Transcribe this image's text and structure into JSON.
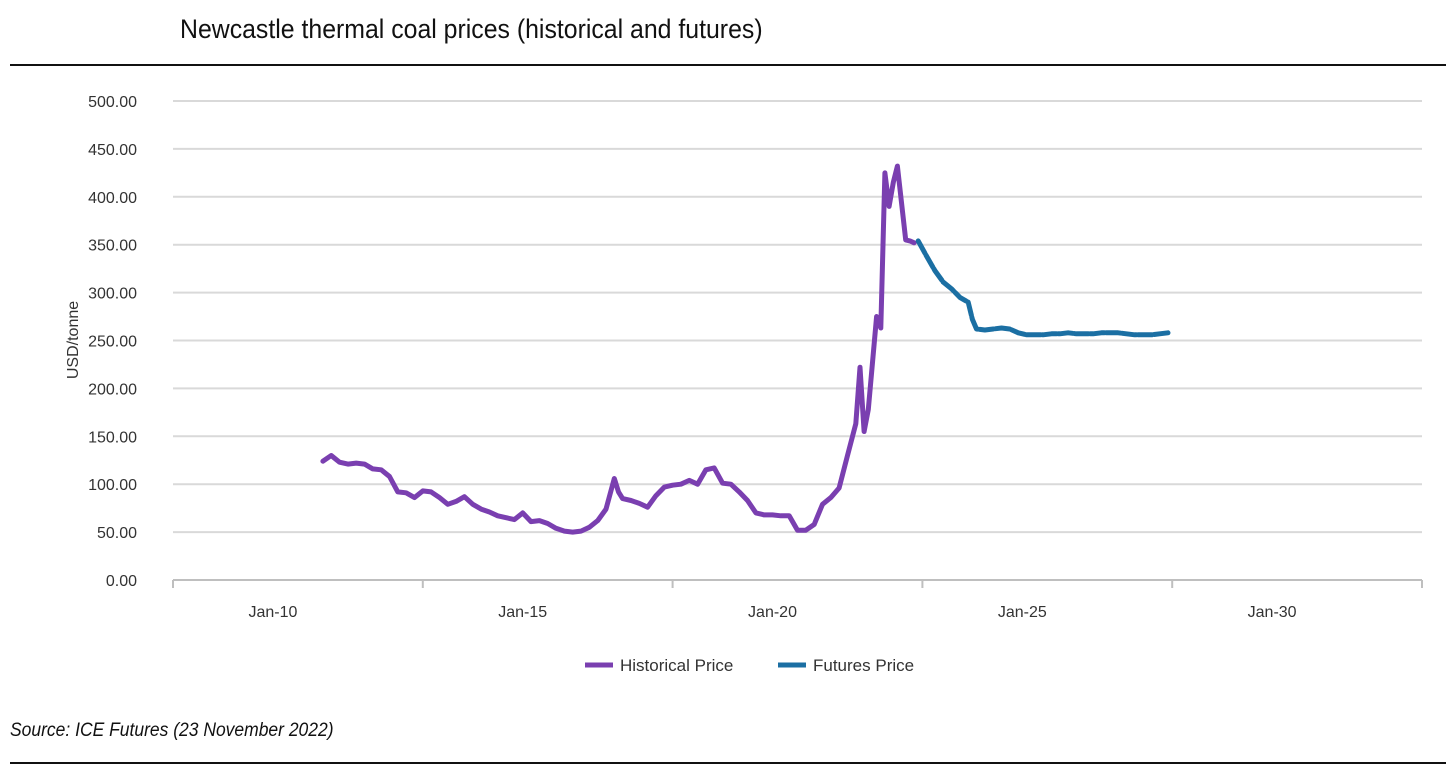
{
  "title": "Newcastle thermal coal prices (historical and futures)",
  "source": "Source: ICE Futures (23 November 2022)",
  "colors": {
    "historical": "#7a3fb0",
    "futures": "#1b6fa3",
    "grid": "#d9d9d9",
    "axis": "#bfbfbf"
  },
  "chart_data": {
    "type": "line",
    "title": "",
    "xlabel": "",
    "ylabel": "USD/tonne",
    "ylim": [
      0,
      500
    ],
    "xlim": [
      "2008-01",
      "2033-01"
    ],
    "yticks": [
      "0.00",
      "50.00",
      "100.00",
      "150.00",
      "200.00",
      "250.00",
      "300.00",
      "350.00",
      "400.00",
      "450.00",
      "500.00"
    ],
    "xticks": [
      "Jan-10",
      "Jan-15",
      "Jan-20",
      "Jan-25",
      "Jan-30"
    ],
    "grid": true,
    "legend_position": "bottom-center",
    "series": [
      {
        "name": "Historical Price",
        "x": [
          "2011-01",
          "2011-03",
          "2011-05",
          "2011-07",
          "2011-09",
          "2011-11",
          "2012-01",
          "2012-03",
          "2012-05",
          "2012-07",
          "2012-09",
          "2012-11",
          "2013-01",
          "2013-03",
          "2013-05",
          "2013-07",
          "2013-09",
          "2013-11",
          "2014-01",
          "2014-03",
          "2014-05",
          "2014-07",
          "2014-09",
          "2014-11",
          "2015-01",
          "2015-03",
          "2015-05",
          "2015-07",
          "2015-09",
          "2015-11",
          "2016-01",
          "2016-03",
          "2016-05",
          "2016-07",
          "2016-09",
          "2016-11",
          "2016-12",
          "2017-01",
          "2017-03",
          "2017-05",
          "2017-07",
          "2017-09",
          "2017-11",
          "2018-01",
          "2018-03",
          "2018-05",
          "2018-07",
          "2018-09",
          "2018-11",
          "2019-01",
          "2019-03",
          "2019-05",
          "2019-07",
          "2019-09",
          "2019-11",
          "2020-01",
          "2020-03",
          "2020-05",
          "2020-07",
          "2020-09",
          "2020-11",
          "2021-01",
          "2021-03",
          "2021-05",
          "2021-07",
          "2021-09",
          "2021-10",
          "2021-11",
          "2021-12",
          "2022-02",
          "2022-03",
          "2022-04",
          "2022-05",
          "2022-06",
          "2022-07",
          "2022-09",
          "2022-10",
          "2022-11"
        ],
        "values": [
          124,
          130,
          123,
          121,
          122,
          121,
          116,
          115,
          108,
          92,
          91,
          86,
          93,
          92,
          86,
          79,
          82,
          87,
          79,
          74,
          71,
          67,
          65,
          63,
          70,
          61,
          62,
          59,
          54,
          51,
          50,
          51,
          55,
          62,
          74,
          106,
          92,
          85,
          83,
          80,
          76,
          88,
          97,
          99,
          100,
          104,
          100,
          115,
          117,
          101,
          100,
          92,
          83,
          70,
          68,
          68,
          67,
          67,
          52,
          52,
          58,
          79,
          86,
          96,
          130,
          163,
          222,
          155,
          178,
          275,
          263,
          425,
          390,
          415,
          432,
          355,
          354,
          352
        ]
      },
      {
        "name": "Futures Price",
        "x": [
          "2022-12",
          "2023-02",
          "2023-04",
          "2023-06",
          "2023-08",
          "2023-10",
          "2023-12",
          "2024-01",
          "2024-02",
          "2024-04",
          "2024-06",
          "2024-08",
          "2024-10",
          "2024-12",
          "2025-02",
          "2025-04",
          "2025-06",
          "2025-08",
          "2025-10",
          "2025-12",
          "2026-02",
          "2026-04",
          "2026-06",
          "2026-08",
          "2026-10",
          "2026-12",
          "2027-02",
          "2027-04",
          "2027-06",
          "2027-08",
          "2027-10",
          "2027-12"
        ],
        "values": [
          354,
          338,
          323,
          311,
          304,
          295,
          290,
          272,
          262,
          261,
          262,
          263,
          262,
          258,
          256,
          256,
          256,
          257,
          257,
          258,
          257,
          257,
          257,
          258,
          258,
          258,
          257,
          256,
          256,
          256,
          257,
          258
        ]
      }
    ]
  }
}
